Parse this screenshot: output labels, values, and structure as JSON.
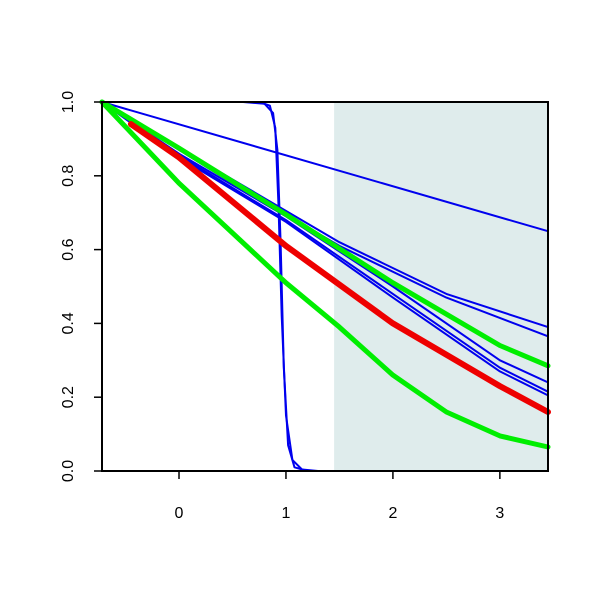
{
  "chart_data": {
    "type": "line",
    "title": "",
    "xlabel": "",
    "ylabel": "",
    "xlim": [
      -0.72,
      3.45
    ],
    "ylim": [
      0.0,
      1.0
    ],
    "x_ticks": [
      "0",
      "1",
      "2",
      "3"
    ],
    "x_tick_values": [
      0,
      1,
      2,
      3
    ],
    "y_ticks": [
      "0.0",
      "0.2",
      "0.4",
      "0.6",
      "0.8",
      "1.0"
    ],
    "y_tick_values": [
      0.0,
      0.2,
      0.4,
      0.6,
      0.8,
      1.0
    ],
    "shaded_region": {
      "x_from": 1.45,
      "x_to": 3.45,
      "color": "#dfecec"
    },
    "grid": false,
    "legend": "none",
    "series": [
      {
        "color": "#0000ee",
        "width": 2,
        "x": [
          -0.72,
          3.45
        ],
        "y": [
          1.0,
          0.65
        ]
      },
      {
        "color": "#0000ee",
        "width": 2,
        "x": [
          -0.72,
          0.5,
          1.5,
          2.5,
          3.45
        ],
        "y": [
          1.0,
          0.79,
          0.62,
          0.48,
          0.39
        ]
      },
      {
        "color": "#0000ee",
        "width": 2,
        "x": [
          -0.72,
          0.5,
          1.5,
          2.5,
          3.45
        ],
        "y": [
          1.0,
          0.78,
          0.61,
          0.47,
          0.365
        ]
      },
      {
        "color": "#0000ee",
        "width": 2,
        "x": [
          -0.72,
          0.0,
          1.0,
          2.0,
          3.0,
          3.45
        ],
        "y": [
          1.0,
          0.86,
          0.69,
          0.5,
          0.3,
          0.24
        ]
      },
      {
        "color": "#0000ee",
        "width": 2,
        "x": [
          -0.72,
          0.0,
          1.0,
          2.0,
          3.0,
          3.45
        ],
        "y": [
          1.0,
          0.855,
          0.68,
          0.48,
          0.28,
          0.215
        ]
      },
      {
        "color": "#0000ee",
        "width": 2,
        "x": [
          -0.72,
          0.0,
          1.0,
          2.0,
          3.0,
          3.45
        ],
        "y": [
          1.0,
          0.85,
          0.675,
          0.47,
          0.27,
          0.205
        ]
      },
      {
        "color": "#0000ee",
        "width": 2,
        "x": [
          -0.72,
          0.6,
          0.8,
          0.88,
          0.92,
          0.95,
          0.98,
          1.02,
          1.08,
          1.2,
          3.45
        ],
        "y": [
          1.0,
          1.0,
          0.995,
          0.97,
          0.87,
          0.62,
          0.28,
          0.07,
          0.01,
          0.0,
          0.0
        ]
      },
      {
        "color": "#0000ee",
        "width": 2,
        "x": [
          -0.72,
          0.75,
          0.85,
          0.9,
          0.93,
          0.96,
          1.0,
          1.06,
          1.15,
          1.3,
          3.45
        ],
        "y": [
          1.0,
          1.0,
          0.99,
          0.93,
          0.72,
          0.42,
          0.15,
          0.03,
          0.004,
          0.0,
          0.0
        ]
      },
      {
        "color": "#00ee00",
        "width": 5,
        "x": [
          -0.72,
          0.0,
          1.0,
          2.0,
          3.0,
          3.45
        ],
        "y": [
          1.0,
          0.875,
          0.695,
          0.51,
          0.34,
          0.285
        ]
      },
      {
        "color": "#00ee00",
        "width": 5,
        "x": [
          -0.72,
          0.0,
          1.0,
          1.5,
          2.0,
          2.5,
          3.0,
          3.45
        ],
        "y": [
          1.0,
          0.78,
          0.51,
          0.39,
          0.26,
          0.16,
          0.095,
          0.065
        ]
      },
      {
        "color": "#ee0000",
        "width": 6,
        "x": [
          -0.45,
          0.0,
          1.0,
          2.0,
          3.0,
          3.45
        ],
        "y": [
          0.94,
          0.85,
          0.61,
          0.4,
          0.23,
          0.16
        ]
      }
    ]
  }
}
